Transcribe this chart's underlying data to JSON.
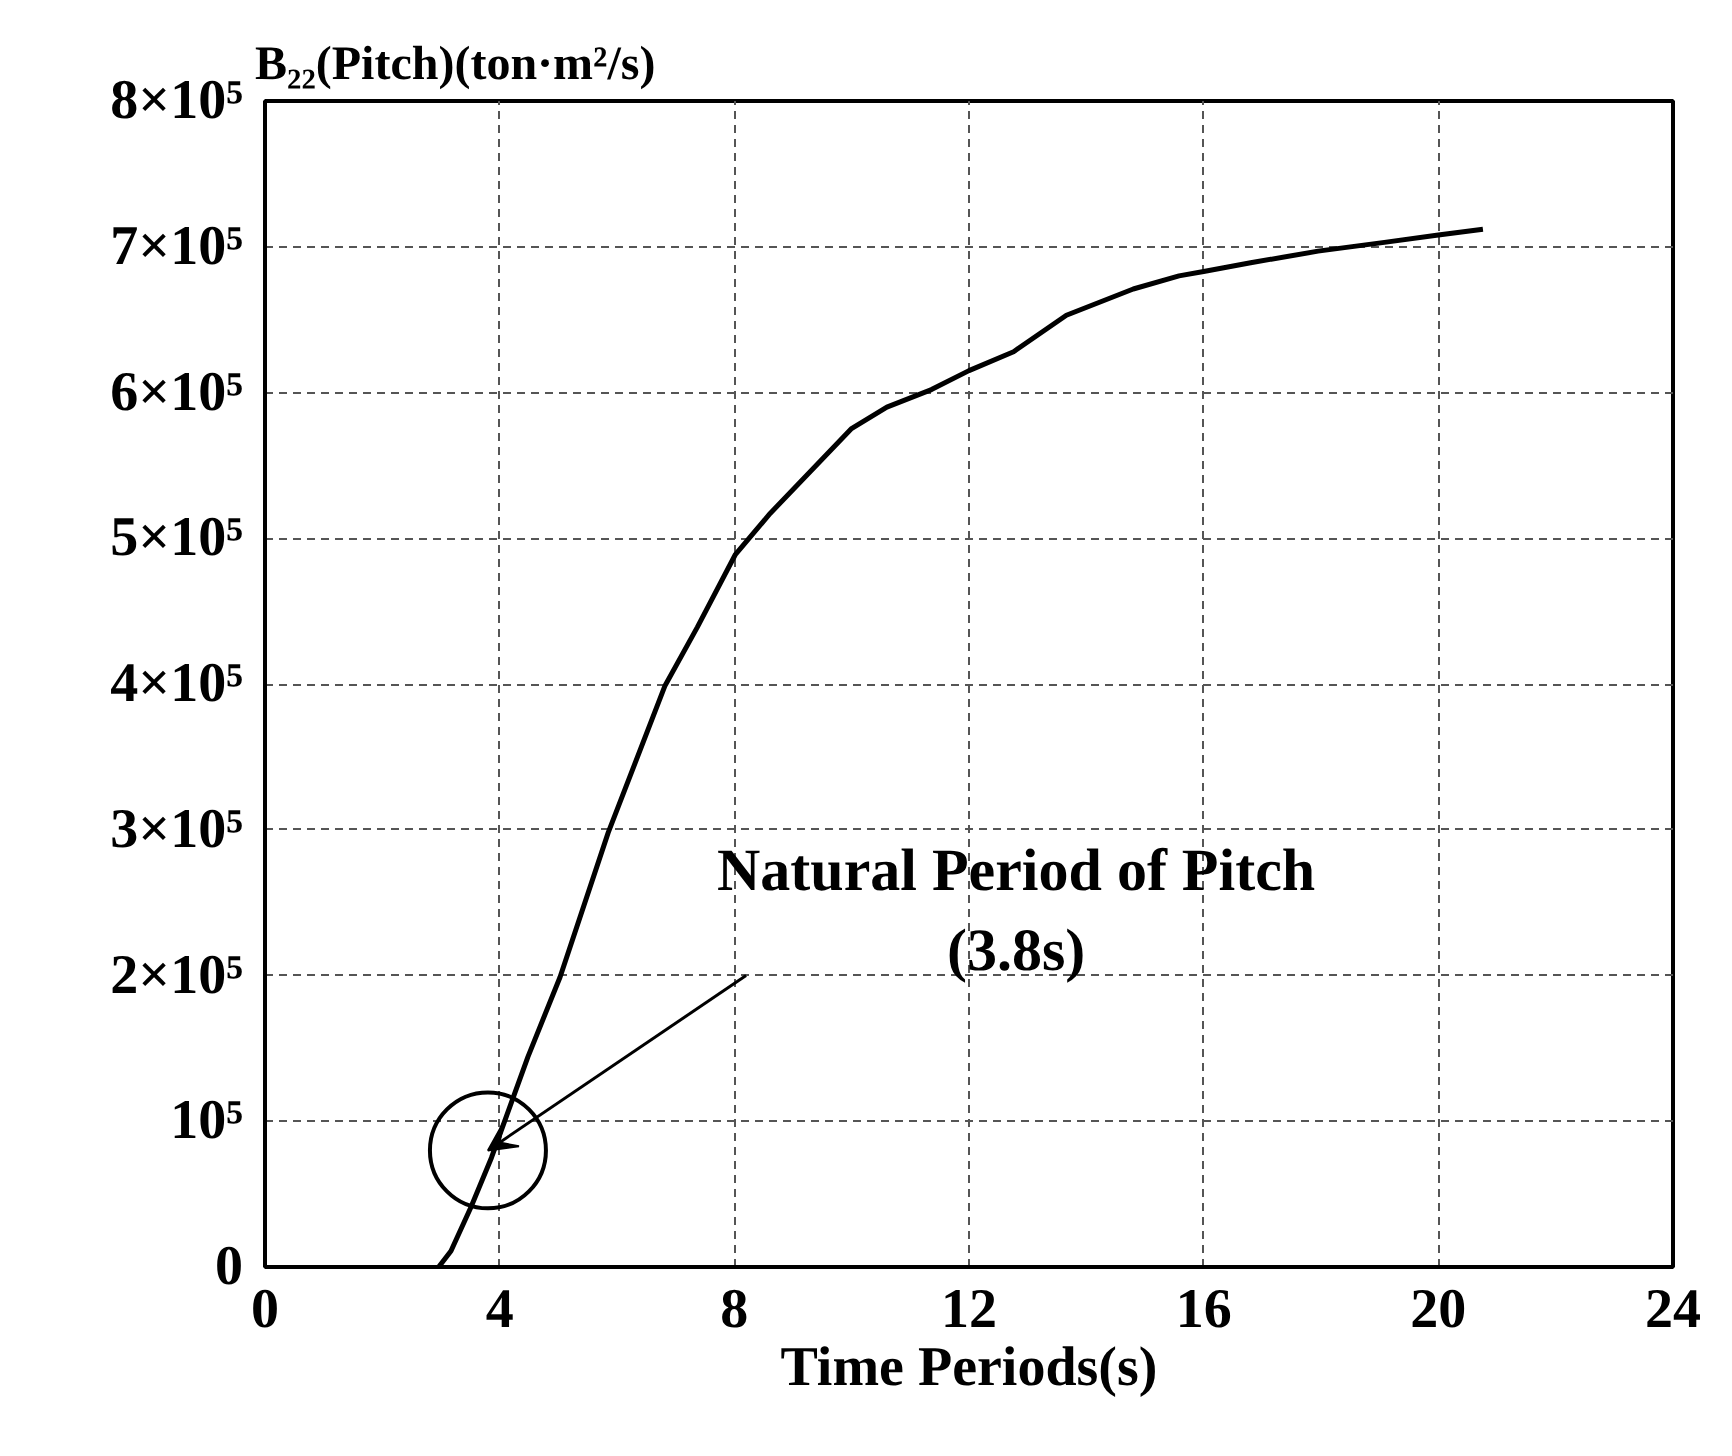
{
  "chart_data": {
    "type": "line",
    "ylabel": "B₂₂(Pitch)(ton·m²/s)",
    "xlabel": "Time Periods(s)",
    "xlim": [
      0,
      24
    ],
    "xticks": [
      0,
      4,
      8,
      12,
      16,
      20,
      24
    ],
    "ylim": [
      0,
      800000
    ],
    "yticks": [
      {
        "value": 0,
        "label": "0"
      },
      {
        "value": 100000,
        "label": "10⁵"
      },
      {
        "value": 200000,
        "label": "2×10⁵"
      },
      {
        "value": 300000,
        "label": "3×10⁵"
      },
      {
        "value": 400000,
        "label": "4×10⁵"
      },
      {
        "value": 500000,
        "label": "5×10⁵"
      },
      {
        "value": 600000,
        "label": "6×10⁵"
      },
      {
        "value": 700000,
        "label": "7×10⁵"
      },
      {
        "value": 800000,
        "label": "8×10⁵"
      }
    ],
    "grid": true,
    "line_style": "solid",
    "marker": "none",
    "series": [
      {
        "color": "#000000",
        "x": [
          2.96,
          3.17,
          3.51,
          3.86,
          4.48,
          5.03,
          5.85,
          6.82,
          7.37,
          8.02,
          8.61,
          9.99,
          10.6,
          11.36,
          12,
          12.76,
          13.66,
          14.8,
          15.58,
          16,
          16.8,
          17.95,
          19.08,
          20,
          20.76
        ],
        "values": [
          0,
          11000,
          41000,
          75000,
          144000,
          199000,
          298000,
          399000,
          439000,
          489000,
          517000,
          575000,
          590000,
          602000,
          615000,
          628000,
          653000,
          671000,
          680000,
          683000,
          689000,
          697000,
          703000,
          708000,
          712000
        ]
      }
    ],
    "annotations": [
      {
        "text": "Natural Period of Pitch\n(3.8s)",
        "x": 3.8,
        "y": 80000
      }
    ]
  }
}
